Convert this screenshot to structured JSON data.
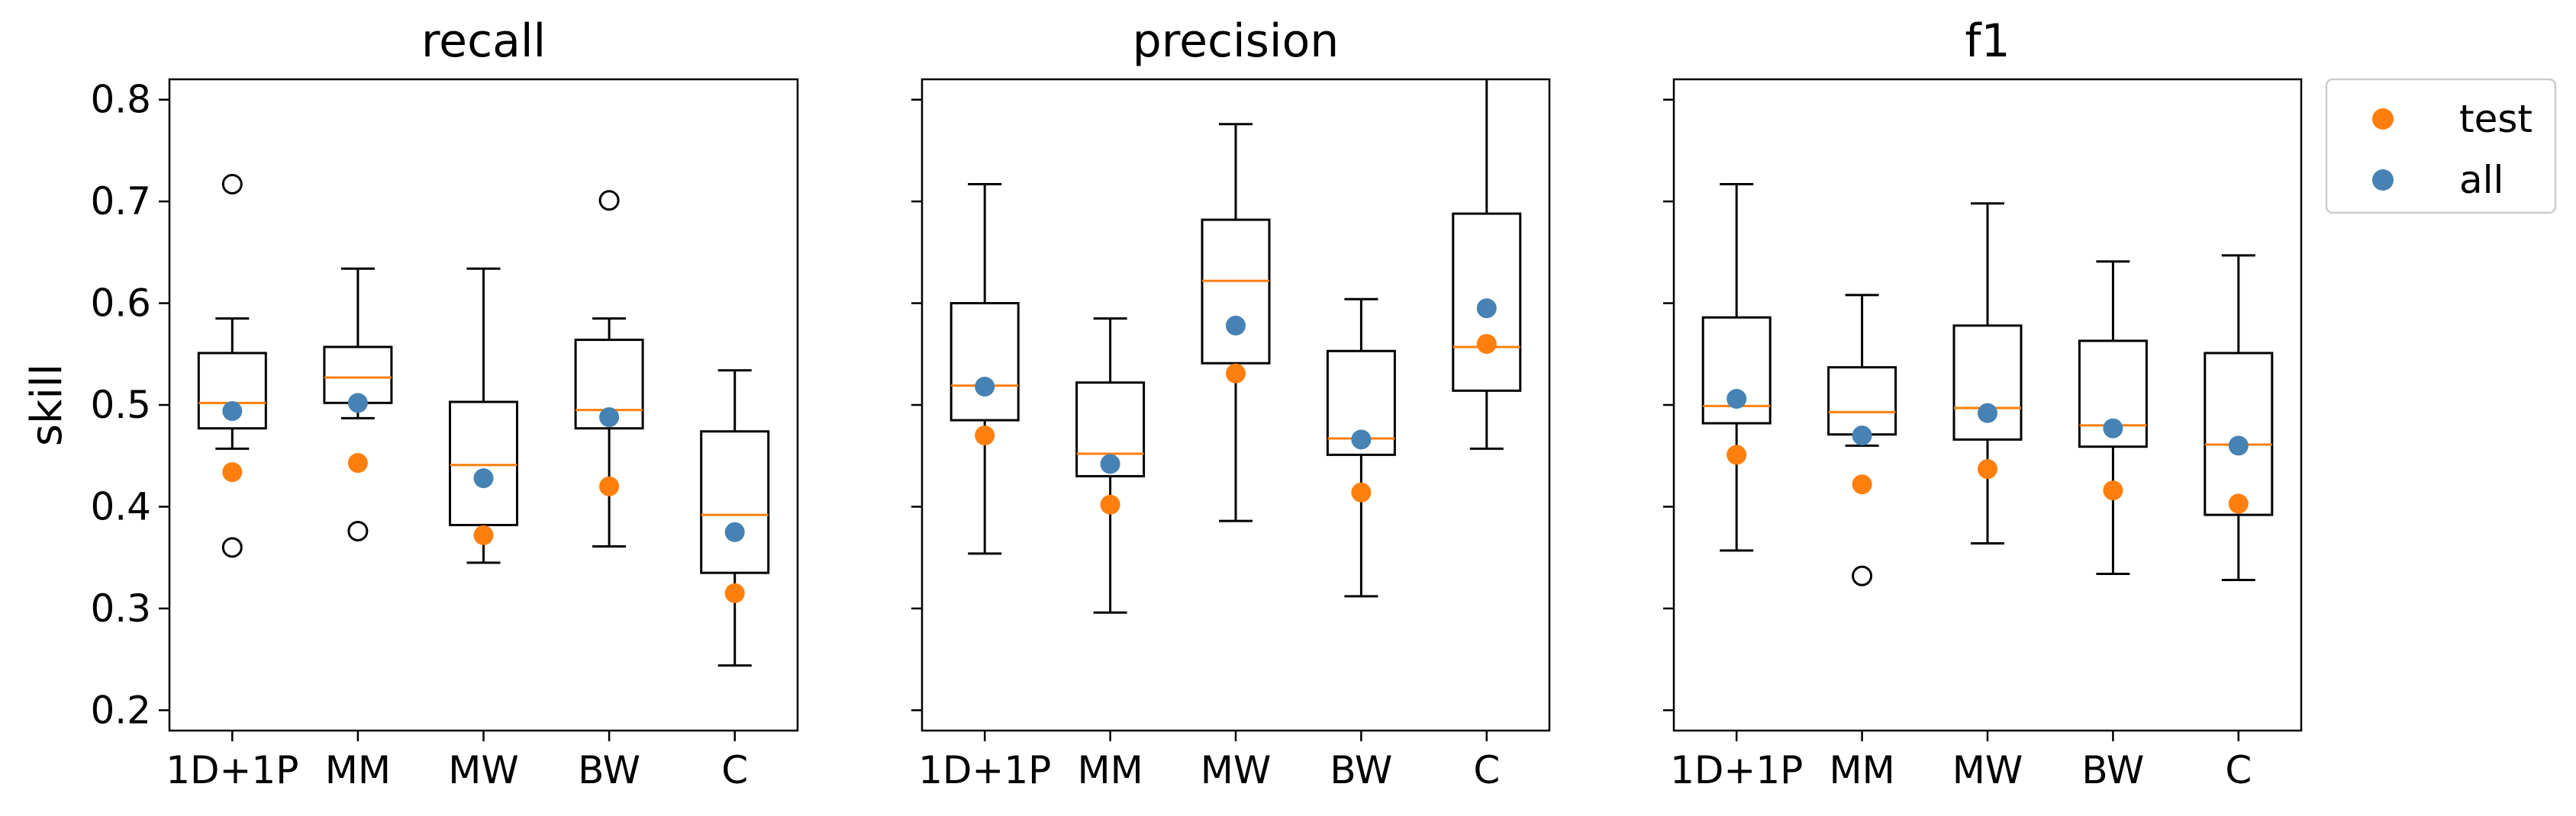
{
  "chart_data": [
    {
      "type": "box",
      "title": "recall",
      "ylabel": "skill",
      "categories": [
        "1D+1P",
        "MM",
        "MW",
        "BW",
        "C"
      ],
      "ylim": [
        0.18,
        0.82
      ],
      "yticks": [
        0.2,
        0.3,
        0.4,
        0.5,
        0.6,
        0.7,
        0.8
      ],
      "boxes": [
        {
          "category": "1D+1P",
          "whislo": 0.457,
          "q1": 0.477,
          "median": 0.502,
          "q3": 0.551,
          "whishi": 0.585,
          "fliers": [
            0.717,
            0.36
          ]
        },
        {
          "category": "MM",
          "whislo": 0.487,
          "q1": 0.502,
          "median": 0.527,
          "q3": 0.557,
          "whishi": 0.634,
          "fliers": [
            0.376
          ]
        },
        {
          "category": "MW",
          "whislo": 0.345,
          "q1": 0.382,
          "median": 0.441,
          "q3": 0.503,
          "whishi": 0.634,
          "fliers": []
        },
        {
          "category": "BW",
          "whislo": 0.361,
          "q1": 0.477,
          "median": 0.495,
          "q3": 0.564,
          "whishi": 0.585,
          "fliers": [
            0.701
          ]
        },
        {
          "category": "C",
          "whislo": 0.244,
          "q1": 0.335,
          "median": 0.392,
          "q3": 0.474,
          "whishi": 0.534,
          "fliers": []
        }
      ],
      "series": [
        {
          "name": "test",
          "values": [
            0.434,
            0.443,
            0.372,
            0.42,
            0.315
          ]
        },
        {
          "name": "all",
          "values": [
            0.494,
            0.502,
            0.428,
            0.488,
            0.375
          ]
        }
      ]
    },
    {
      "type": "box",
      "title": "precision",
      "categories": [
        "1D+1P",
        "MM",
        "MW",
        "BW",
        "C"
      ],
      "ylim": [
        0.18,
        0.82
      ],
      "yticks": [
        0.2,
        0.3,
        0.4,
        0.5,
        0.6,
        0.7,
        0.8
      ],
      "boxes": [
        {
          "category": "1D+1P",
          "whislo": 0.354,
          "q1": 0.485,
          "median": 0.519,
          "q3": 0.6,
          "whishi": 0.717,
          "fliers": []
        },
        {
          "category": "MM",
          "whislo": 0.296,
          "q1": 0.43,
          "median": 0.452,
          "q3": 0.522,
          "whishi": 0.585,
          "fliers": []
        },
        {
          "category": "MW",
          "whislo": 0.386,
          "q1": 0.541,
          "median": 0.622,
          "q3": 0.682,
          "whishi": 0.776,
          "fliers": []
        },
        {
          "category": "BW",
          "whislo": 0.312,
          "q1": 0.451,
          "median": 0.467,
          "q3": 0.553,
          "whishi": 0.604,
          "fliers": []
        },
        {
          "category": "C",
          "whislo": 0.457,
          "q1": 0.514,
          "median": 0.557,
          "q3": 0.688,
          "whishi": 0.83,
          "fliers": []
        }
      ],
      "series": [
        {
          "name": "test",
          "values": [
            0.47,
            0.402,
            0.531,
            0.414,
            0.56
          ]
        },
        {
          "name": "all",
          "values": [
            0.518,
            0.442,
            0.578,
            0.466,
            0.595
          ]
        }
      ]
    },
    {
      "type": "box",
      "title": "f1",
      "categories": [
        "1D+1P",
        "MM",
        "MW",
        "BW",
        "C"
      ],
      "ylim": [
        0.18,
        0.82
      ],
      "yticks": [
        0.2,
        0.3,
        0.4,
        0.5,
        0.6,
        0.7,
        0.8
      ],
      "boxes": [
        {
          "category": "1D+1P",
          "whislo": 0.357,
          "q1": 0.482,
          "median": 0.499,
          "q3": 0.586,
          "whishi": 0.717,
          "fliers": []
        },
        {
          "category": "MM",
          "whislo": 0.46,
          "q1": 0.471,
          "median": 0.493,
          "q3": 0.537,
          "whishi": 0.608,
          "fliers": [
            0.332
          ]
        },
        {
          "category": "MW",
          "whislo": 0.364,
          "q1": 0.466,
          "median": 0.497,
          "q3": 0.578,
          "whishi": 0.698,
          "fliers": []
        },
        {
          "category": "BW",
          "whislo": 0.334,
          "q1": 0.459,
          "median": 0.48,
          "q3": 0.563,
          "whishi": 0.641,
          "fliers": []
        },
        {
          "category": "C",
          "whislo": 0.328,
          "q1": 0.392,
          "median": 0.461,
          "q3": 0.551,
          "whishi": 0.647,
          "fliers": []
        }
      ],
      "series": [
        {
          "name": "test",
          "values": [
            0.451,
            0.422,
            0.437,
            0.416,
            0.403
          ]
        },
        {
          "name": "all",
          "values": [
            0.506,
            0.47,
            0.492,
            0.477,
            0.46
          ]
        }
      ]
    }
  ],
  "legend": {
    "placement": "outside-right",
    "entries": [
      {
        "label": "test",
        "color": "#ff7f0e"
      },
      {
        "label": "all",
        "color": "#4682b4"
      }
    ]
  },
  "colors": {
    "test": "#ff7f0e",
    "all": "#4682b4",
    "median": "#ff7f0e",
    "box": "#000000"
  }
}
